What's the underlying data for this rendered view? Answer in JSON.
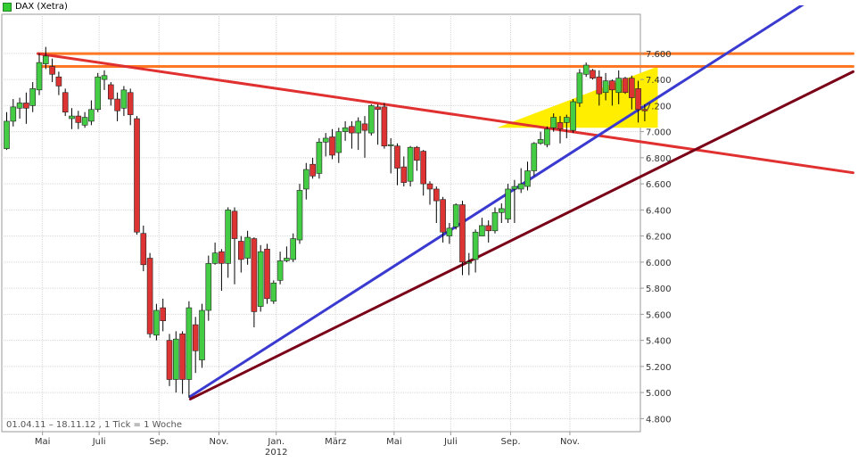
{
  "chart_data": {
    "type": "candlestick",
    "title": "DAX (Xetra)",
    "footer_note": "01.04.11 – 18.11.12 , 1 Tick = 1 Woche",
    "ylim": [
      4700,
      7900
    ],
    "y_ticks": [
      4800,
      5000,
      5200,
      5400,
      5600,
      5800,
      6000,
      6200,
      6400,
      6600,
      6800,
      7000,
      7200,
      7400,
      7600
    ],
    "y_tick_labels": [
      "4.800",
      "5.000",
      "5.200",
      "5.400",
      "5.600",
      "5.800",
      "6.000",
      "6.200",
      "6.400",
      "6.600",
      "6.800",
      "7.000",
      "7.200",
      "7.400",
      "7.600"
    ],
    "x_ticks": [
      {
        "w": 5.5,
        "label": "Mai"
      },
      {
        "w": 14.2,
        "label": "Juli"
      },
      {
        "w": 23.4,
        "label": "Sep."
      },
      {
        "w": 32.6,
        "label": "Nov."
      },
      {
        "w": 41.4,
        "label": "Jan."
      },
      {
        "w": 50.5,
        "label": "März"
      },
      {
        "w": 59.5,
        "label": "Mai"
      },
      {
        "w": 68.2,
        "label": "Juli"
      },
      {
        "w": 77.4,
        "label": "Sep."
      },
      {
        "w": 86.5,
        "label": "Nov."
      }
    ],
    "x_sublabel": {
      "w": 41.4,
      "label": "2012"
    },
    "candles": [
      [
        6870,
        7080,
        6860,
        7150
      ],
      [
        7080,
        7190,
        7040,
        7250
      ],
      [
        7180,
        7220,
        7100,
        7260
      ],
      [
        7220,
        7180,
        7060,
        7300
      ],
      [
        7200,
        7330,
        7150,
        7380
      ],
      [
        7320,
        7530,
        7280,
        7600
      ],
      [
        7520,
        7580,
        7480,
        7650
      ],
      [
        7500,
        7440,
        7380,
        7560
      ],
      [
        7420,
        7350,
        7280,
        7460
      ],
      [
        7300,
        7150,
        7120,
        7330
      ],
      [
        7100,
        7120,
        7020,
        7180
      ],
      [
        7120,
        7070,
        7020,
        7160
      ],
      [
        7050,
        7110,
        7030,
        7150
      ],
      [
        7080,
        7170,
        7050,
        7240
      ],
      [
        7170,
        7420,
        7150,
        7450
      ],
      [
        7400,
        7430,
        7320,
        7470
      ],
      [
        7360,
        7250,
        7200,
        7380
      ],
      [
        7250,
        7160,
        7080,
        7300
      ],
      [
        7180,
        7320,
        7120,
        7350
      ],
      [
        7300,
        7130,
        7050,
        7330
      ],
      [
        7100,
        6230,
        6210,
        7120
      ],
      [
        6220,
        5980,
        5930,
        6280
      ],
      [
        6030,
        5450,
        5420,
        6070
      ],
      [
        5440,
        5630,
        5400,
        5680
      ],
      [
        5650,
        5550,
        5470,
        5720
      ],
      [
        5400,
        5100,
        5050,
        5450
      ],
      [
        5100,
        5410,
        5000,
        5470
      ],
      [
        5450,
        5100,
        4990,
        5470
      ],
      [
        5100,
        5650,
        4960,
        5700
      ],
      [
        5520,
        5320,
        5150,
        5580
      ],
      [
        5250,
        5630,
        5190,
        5680
      ],
      [
        5630,
        5990,
        5550,
        6050
      ],
      [
        5990,
        6070,
        5980,
        6150
      ],
      [
        6080,
        5990,
        5780,
        6100
      ],
      [
        5990,
        6400,
        5880,
        6420
      ],
      [
        6390,
        6180,
        5830,
        6420
      ],
      [
        6160,
        6020,
        5920,
        6200
      ],
      [
        6030,
        6190,
        5980,
        6240
      ],
      [
        6180,
        5620,
        5500,
        6190
      ],
      [
        5660,
        6080,
        5620,
        6130
      ],
      [
        6100,
        5720,
        5680,
        6140
      ],
      [
        5700,
        5840,
        5680,
        5860
      ],
      [
        5860,
        6010,
        5830,
        6080
      ],
      [
        6010,
        6030,
        6000,
        6120
      ],
      [
        6020,
        6180,
        6000,
        6220
      ],
      [
        6170,
        6550,
        6140,
        6600
      ],
      [
        6560,
        6710,
        6480,
        6760
      ],
      [
        6750,
        6660,
        6640,
        6800
      ],
      [
        6680,
        6920,
        6640,
        6950
      ],
      [
        6920,
        6950,
        6810,
        6990
      ],
      [
        6960,
        6820,
        6790,
        7020
      ],
      [
        6840,
        7000,
        6760,
        7030
      ],
      [
        7000,
        7030,
        6930,
        7080
      ],
      [
        7040,
        6990,
        6870,
        7080
      ],
      [
        6990,
        7080,
        6860,
        7110
      ],
      [
        7060,
        7010,
        6800,
        7120
      ],
      [
        6990,
        7200,
        6970,
        7210
      ],
      [
        7190,
        7170,
        6900,
        7210
      ],
      [
        7190,
        6890,
        6870,
        7220
      ],
      [
        6900,
        6900,
        6680,
        6950
      ],
      [
        6890,
        6720,
        6590,
        6910
      ],
      [
        6730,
        6610,
        6580,
        6810
      ],
      [
        6620,
        6880,
        6580,
        6890
      ],
      [
        6880,
        6780,
        6700,
        6890
      ],
      [
        6850,
        6600,
        6510,
        6860
      ],
      [
        6600,
        6560,
        6440,
        6620
      ],
      [
        6560,
        6470,
        6300,
        6580
      ],
      [
        6480,
        6230,
        6150,
        6500
      ],
      [
        6200,
        6260,
        6140,
        6300
      ],
      [
        6270,
        6440,
        6250,
        6450
      ],
      [
        6440,
        6000,
        5900,
        6470
      ],
      [
        6000,
        6000,
        5900,
        6070
      ],
      [
        6020,
        6230,
        5920,
        6250
      ],
      [
        6200,
        6280,
        6200,
        6340
      ],
      [
        6280,
        6240,
        6150,
        6320
      ],
      [
        6240,
        6380,
        6220,
        6420
      ],
      [
        6380,
        6410,
        6300,
        6450
      ],
      [
        6330,
        6560,
        6300,
        6600
      ],
      [
        6560,
        6580,
        6300,
        6630
      ],
      [
        6560,
        6600,
        6530,
        6720
      ],
      [
        6580,
        6700,
        6550,
        6770
      ],
      [
        6700,
        6910,
        6660,
        6920
      ],
      [
        6910,
        6940,
        6900,
        7000
      ],
      [
        6900,
        7020,
        6880,
        7040
      ],
      [
        7030,
        7110,
        7000,
        7140
      ],
      [
        7070,
        7020,
        6910,
        7120
      ],
      [
        7070,
        7110,
        6950,
        7130
      ],
      [
        7010,
        7230,
        6990,
        7250
      ],
      [
        7220,
        7450,
        7190,
        7480
      ],
      [
        7440,
        7510,
        7420,
        7530
      ],
      [
        7470,
        7410,
        7400,
        7480
      ],
      [
        7420,
        7290,
        7200,
        7470
      ],
      [
        7300,
        7390,
        7240,
        7450
      ],
      [
        7390,
        7320,
        7200,
        7400
      ],
      [
        7300,
        7410,
        7210,
        7470
      ],
      [
        7410,
        7300,
        7290,
        7420
      ],
      [
        7410,
        7260,
        7170,
        7430
      ],
      [
        7330,
        7170,
        7070,
        7390
      ],
      [
        7170,
        7160,
        7080,
        7210
      ]
    ],
    "lines": [
      {
        "name": "orange-horizontal-upper",
        "color": "#ff7722",
        "from": [
          4.8,
          7598
        ],
        "to": [
          130,
          7598
        ]
      },
      {
        "name": "orange-horizontal-lower",
        "color": "#ff7722",
        "from": [
          4.8,
          7500
        ],
        "to": [
          130,
          7500
        ]
      },
      {
        "name": "red-downtrend",
        "color": "#e03030",
        "from": [
          4.8,
          7598
        ],
        "to": [
          130,
          6685
        ]
      },
      {
        "name": "blue-uptrend",
        "color": "#3a3ad0",
        "from": [
          28.2,
          4970
        ],
        "to": [
          130,
          8220
        ]
      },
      {
        "name": "darkred-support",
        "color": "#7a0018",
        "from": [
          28.2,
          4950
        ],
        "to": [
          130,
          7460
        ]
      }
    ],
    "highlight_triangle": {
      "color": "#ffee00",
      "points": [
        [
          75.3,
          7030
        ],
        [
          100,
          7500
        ],
        [
          100,
          7030
        ]
      ]
    },
    "up_color": "#44cc44",
    "down_color": "#dd3333"
  }
}
